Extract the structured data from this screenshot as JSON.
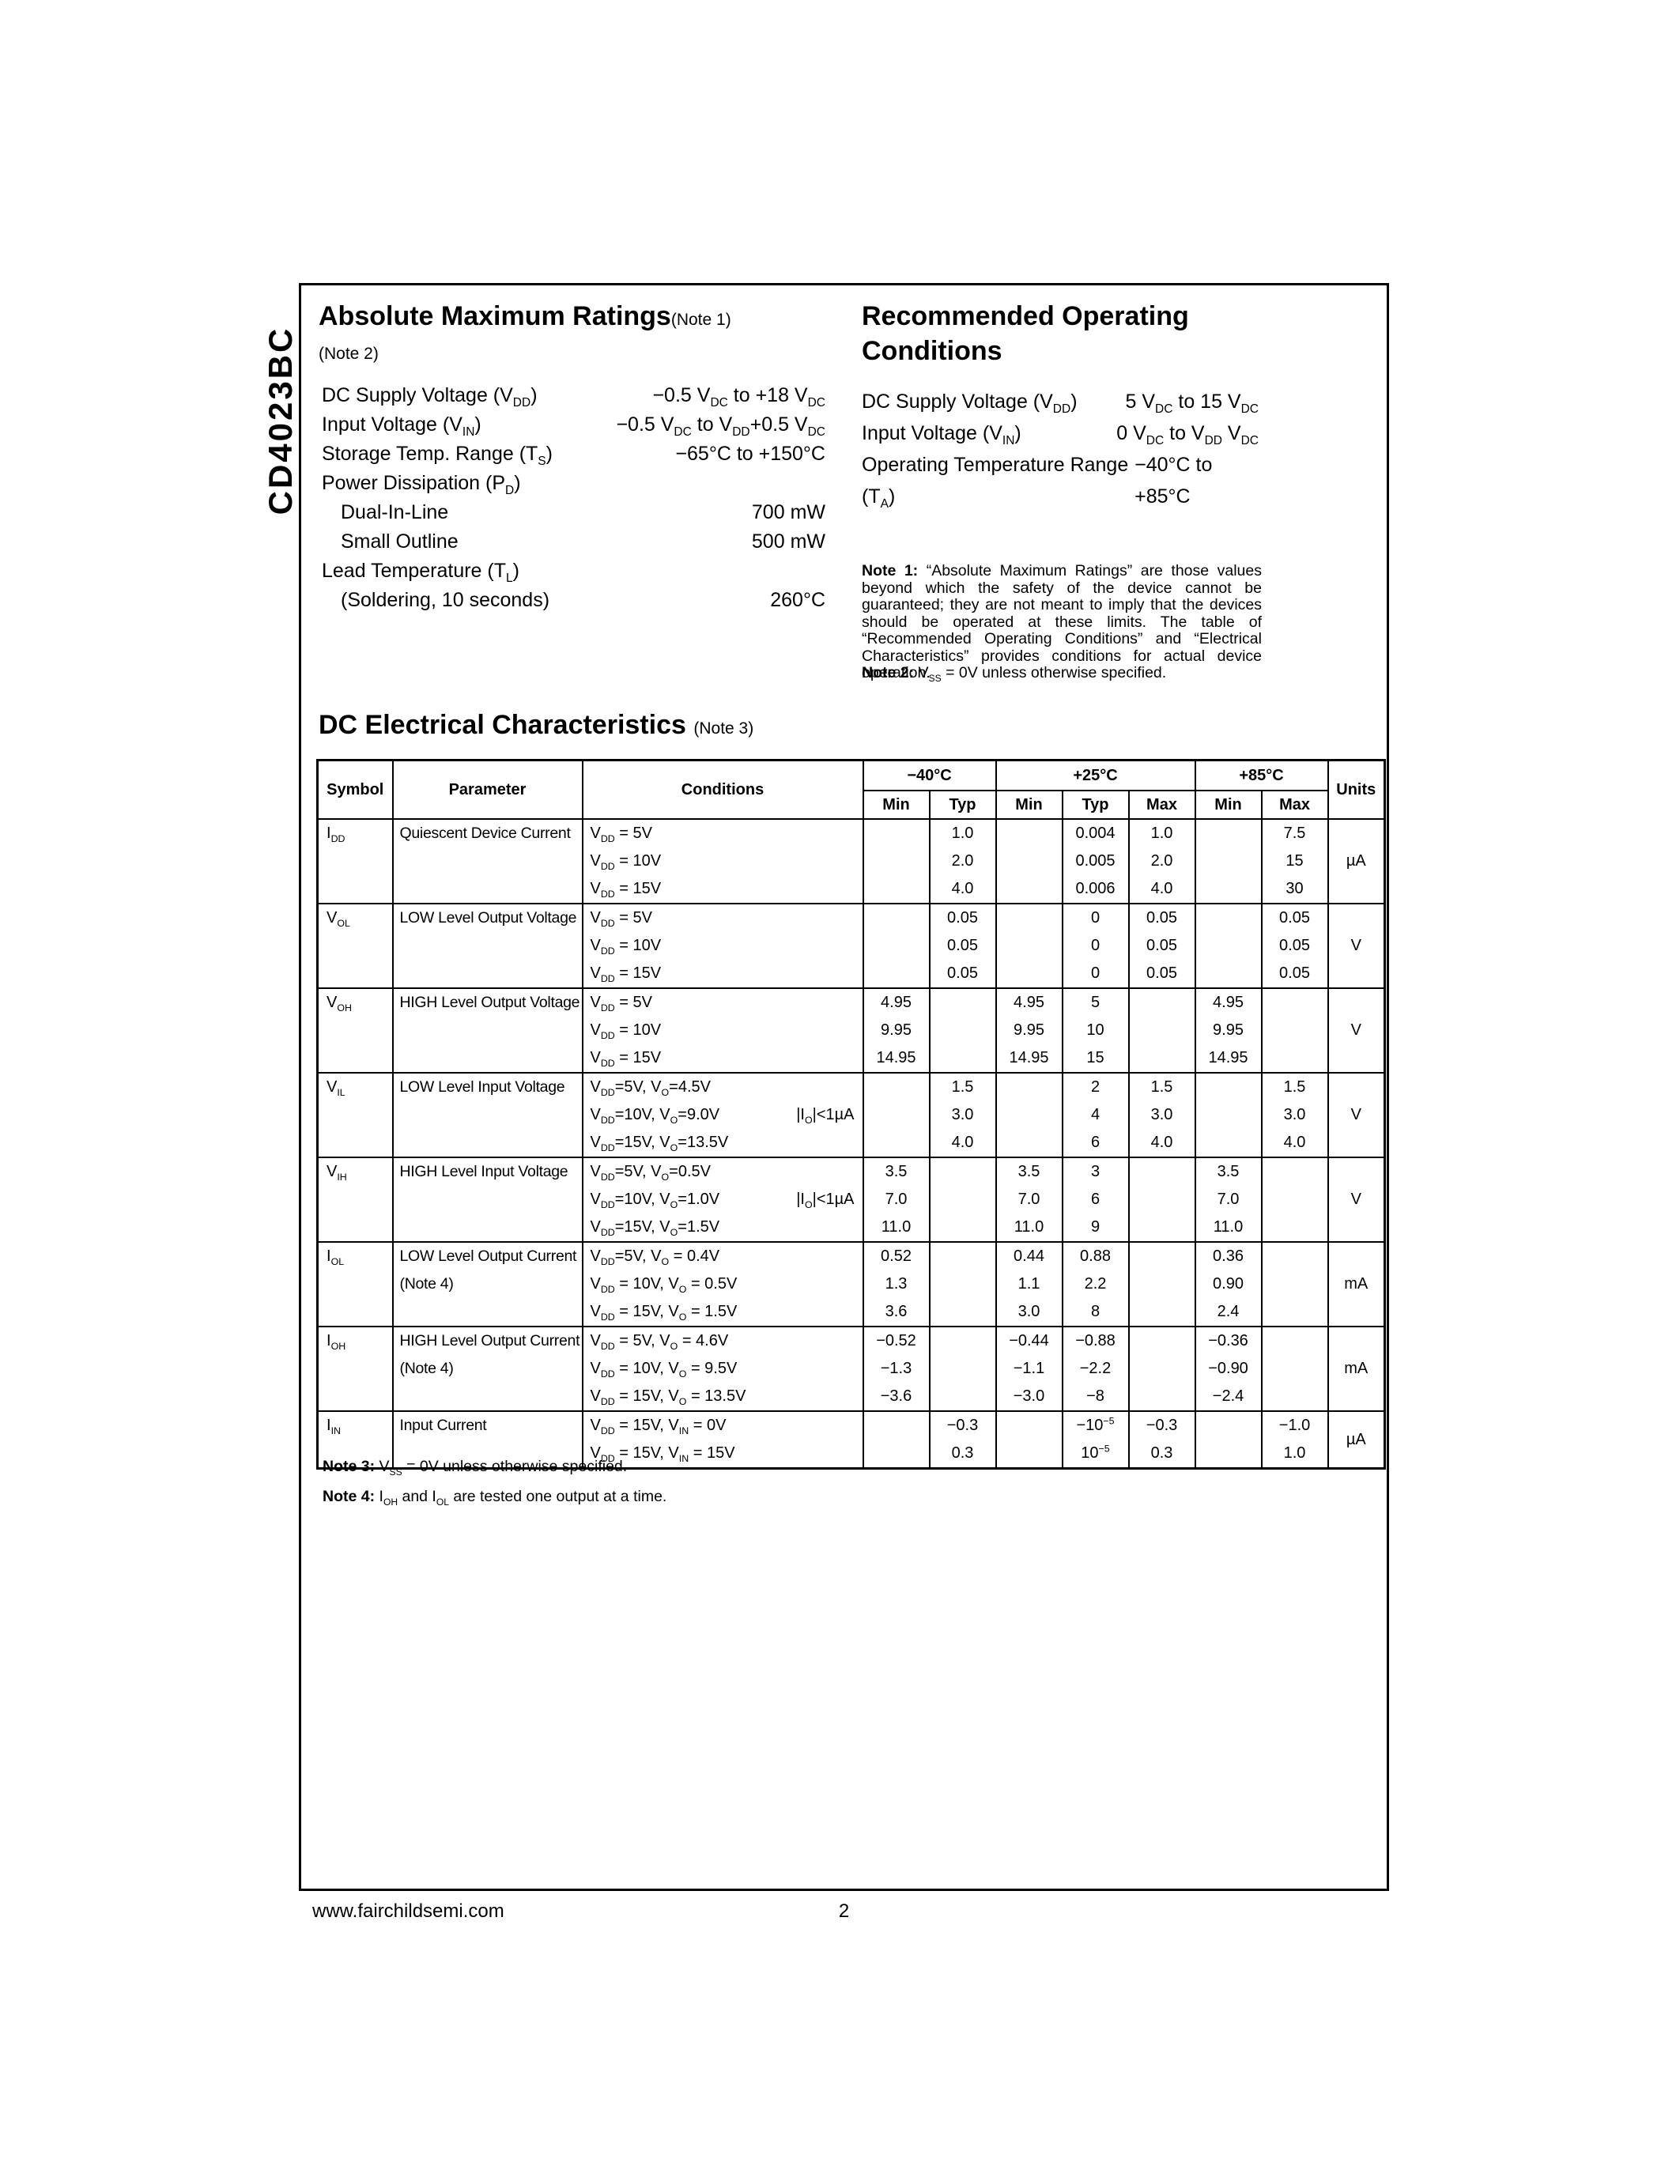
{
  "page": {
    "product": "CD4023BC",
    "footer_url": "www.fairchildsemi.com",
    "page_number": "2"
  },
  "abs_max": {
    "title": "Absolute Maximum Ratings",
    "title_note": "(Note 1)",
    "subtitle_note": "(Note 2)",
    "items": [
      {
        "label": "DC Supply Voltage (V~DD~)",
        "value": "−0.5 V~DC~ to +18 V~DC~",
        "indent": false
      },
      {
        "label": "Input Voltage (V~IN~)",
        "value": "−0.5 V~DC~ to V~DD~+0.5 V~DC~",
        "indent": false
      },
      {
        "label": "Storage Temp. Range (T~S~)",
        "value": "−65°C to +150°C",
        "indent": false
      },
      {
        "label": "Power Dissipation (P~D~)",
        "value": "",
        "indent": false
      },
      {
        "label": "Dual-In-Line",
        "value": "700 mW",
        "indent": true
      },
      {
        "label": "Small Outline",
        "value": "500 mW",
        "indent": true
      },
      {
        "label": "Lead Temperature (T~L~)",
        "value": "",
        "indent": false
      },
      {
        "label": "(Soldering, 10 seconds)",
        "value": "260°C",
        "indent": true
      }
    ]
  },
  "rec_op": {
    "title_line1": "Recommended Operating",
    "title_line2": "Conditions",
    "items": [
      {
        "label": "DC Supply Voltage (V~DD~)",
        "value": "5 V~DC~ to 15 V~DC~",
        "indent": false
      },
      {
        "label": "Input Voltage (V~IN~)",
        "value": "0 V~DC~ to V~DD~ V~DC~",
        "indent": false
      },
      {
        "label": "Operating Temperature Range (T~A~)",
        "value": "−40°C to +85°C",
        "indent": false
      }
    ],
    "note1_label": "Note 1:",
    "note1_text": " “Absolute Maximum Ratings” are those values beyond which the safety of the device cannot be guaranteed; they are not meant to imply that the devices should be operated at these limits. The table of “Recommended Operating Conditions” and “Electrical Characteristics” provides conditions for actual device operation.",
    "note2_label": "Note 2:",
    "note2_text": " V~SS~ = 0V unless otherwise specified."
  },
  "dc_char": {
    "title": "DC Electrical Characteristics",
    "title_note": "(Note 3)",
    "headers": {
      "symbol": "Symbol",
      "parameter": "Parameter",
      "conditions": "Conditions",
      "t1": "−40°C",
      "t2": "+25°C",
      "t3": "+85°C",
      "s1": "Min",
      "s2": "Typ",
      "s3": "Min",
      "s4": "Typ",
      "s5": "Max",
      "s6": "Min",
      "s7": "Max",
      "units": "Units"
    },
    "groups": [
      {
        "symbol": "I~DD~",
        "parameter": "Quiescent Device Current",
        "param_note": "",
        "units": "µA",
        "rows": [
          {
            "cond": "V~DD~ = 5V",
            "extra": "",
            "vals": [
              "",
              "1.0",
              "",
              "0.004",
              "1.0",
              "",
              "7.5"
            ]
          },
          {
            "cond": "V~DD~ = 10V",
            "extra": "",
            "vals": [
              "",
              "2.0",
              "",
              "0.005",
              "2.0",
              "",
              "15"
            ]
          },
          {
            "cond": "V~DD~ = 15V",
            "extra": "",
            "vals": [
              "",
              "4.0",
              "",
              "0.006",
              "4.0",
              "",
              "30"
            ]
          }
        ]
      },
      {
        "symbol": "V~OL~",
        "parameter": "LOW Level Output Voltage",
        "param_note": "",
        "units": "V",
        "rows": [
          {
            "cond": "V~DD~ = 5V",
            "extra": "",
            "vals": [
              "",
              "0.05",
              "",
              "0",
              "0.05",
              "",
              "0.05"
            ]
          },
          {
            "cond": "V~DD~ = 10V",
            "extra": "",
            "vals": [
              "",
              "0.05",
              "",
              "0",
              "0.05",
              "",
              "0.05"
            ]
          },
          {
            "cond": "V~DD~ = 15V",
            "extra": "",
            "vals": [
              "",
              "0.05",
              "",
              "0",
              "0.05",
              "",
              "0.05"
            ]
          }
        ]
      },
      {
        "symbol": "V~OH~",
        "parameter": "HIGH Level Output Voltage",
        "param_note": "",
        "units": "V",
        "rows": [
          {
            "cond": "V~DD~ = 5V",
            "extra": "",
            "vals": [
              "4.95",
              "",
              "4.95",
              "5",
              "",
              "4.95",
              ""
            ]
          },
          {
            "cond": "V~DD~ = 10V",
            "extra": "",
            "vals": [
              "9.95",
              "",
              "9.95",
              "10",
              "",
              "9.95",
              ""
            ]
          },
          {
            "cond": "V~DD~ = 15V",
            "extra": "",
            "vals": [
              "14.95",
              "",
              "14.95",
              "15",
              "",
              "14.95",
              ""
            ]
          }
        ]
      },
      {
        "symbol": "V~IL~",
        "parameter": "LOW Level Input Voltage",
        "param_note": "",
        "units": "V",
        "rows": [
          {
            "cond": "V~DD~=5V, V~O~=4.5V",
            "extra": "",
            "vals": [
              "",
              "1.5",
              "",
              "2",
              "1.5",
              "",
              "1.5"
            ]
          },
          {
            "cond": "V~DD~=10V, V~O~=9.0V",
            "extra": "|I~O~|<1µA",
            "vals": [
              "",
              "3.0",
              "",
              "4",
              "3.0",
              "",
              "3.0"
            ]
          },
          {
            "cond": "V~DD~=15V, V~O~=13.5V",
            "extra": "",
            "vals": [
              "",
              "4.0",
              "",
              "6",
              "4.0",
              "",
              "4.0"
            ]
          }
        ]
      },
      {
        "symbol": "V~IH~",
        "parameter": "HIGH Level Input Voltage",
        "param_note": "",
        "units": "V",
        "rows": [
          {
            "cond": "V~DD~=5V, V~O~=0.5V",
            "extra": "",
            "vals": [
              "3.5",
              "",
              "3.5",
              "3",
              "",
              "3.5",
              ""
            ]
          },
          {
            "cond": "V~DD~=10V, V~O~=1.0V",
            "extra": "|I~O~|<1µA",
            "vals": [
              "7.0",
              "",
              "7.0",
              "6",
              "",
              "7.0",
              ""
            ]
          },
          {
            "cond": "V~DD~=15V, V~O~=1.5V",
            "extra": "",
            "vals": [
              "11.0",
              "",
              "11.0",
              "9",
              "",
              "11.0",
              ""
            ]
          }
        ]
      },
      {
        "symbol": "I~OL~",
        "parameter": "LOW Level Output Current",
        "param_note": "(Note 4)",
        "units": "mA",
        "rows": [
          {
            "cond": "V~DD~=5V, V~O~ = 0.4V",
            "extra": "",
            "vals": [
              "0.52",
              "",
              "0.44",
              "0.88",
              "",
              "0.36",
              ""
            ]
          },
          {
            "cond": "V~DD~ = 10V, V~O~ = 0.5V",
            "extra": "",
            "vals": [
              "1.3",
              "",
              "1.1",
              "2.2",
              "",
              "0.90",
              ""
            ]
          },
          {
            "cond": "V~DD~ = 15V, V~O~ = 1.5V",
            "extra": "",
            "vals": [
              "3.6",
              "",
              "3.0",
              "8",
              "",
              "2.4",
              ""
            ]
          }
        ]
      },
      {
        "symbol": "I~OH~",
        "parameter": "HIGH Level Output Current",
        "param_note": "(Note 4)",
        "units": "mA",
        "rows": [
          {
            "cond": "V~DD~ = 5V, V~O~ = 4.6V",
            "extra": "",
            "vals": [
              "−0.52",
              "",
              "−0.44",
              "−0.88",
              "",
              "−0.36",
              ""
            ]
          },
          {
            "cond": "V~DD~ = 10V, V~O~ = 9.5V",
            "extra": "",
            "vals": [
              "−1.3",
              "",
              "−1.1",
              "−2.2",
              "",
              "−0.90",
              ""
            ]
          },
          {
            "cond": "V~DD~ = 15V, V~O~ = 13.5V",
            "extra": "",
            "vals": [
              "−3.6",
              "",
              "−3.0",
              "−8",
              "",
              "−2.4",
              ""
            ]
          }
        ]
      },
      {
        "symbol": "I~IN~",
        "parameter": "Input Current",
        "param_note": "",
        "units": "µA",
        "rows": [
          {
            "cond": "V~DD~ = 15V, V~IN~ = 0V",
            "extra": "",
            "vals": [
              "",
              "−0.3",
              "",
              "−10^−5^",
              "−0.3",
              "",
              "−1.0"
            ]
          },
          {
            "cond": "V~DD~ = 15V, V~IN~ = 15V",
            "extra": "",
            "vals": [
              "",
              "0.3",
              "",
              "10^−5^",
              "0.3",
              "",
              "1.0"
            ]
          }
        ]
      }
    ],
    "note3_label": "Note 3:",
    "note3_text": " V~SS~ = 0V unless otherwise specified.",
    "note4_label": "Note 4:",
    "note4_text": " I~OH~ and I~OL~ are tested one output at a time."
  }
}
